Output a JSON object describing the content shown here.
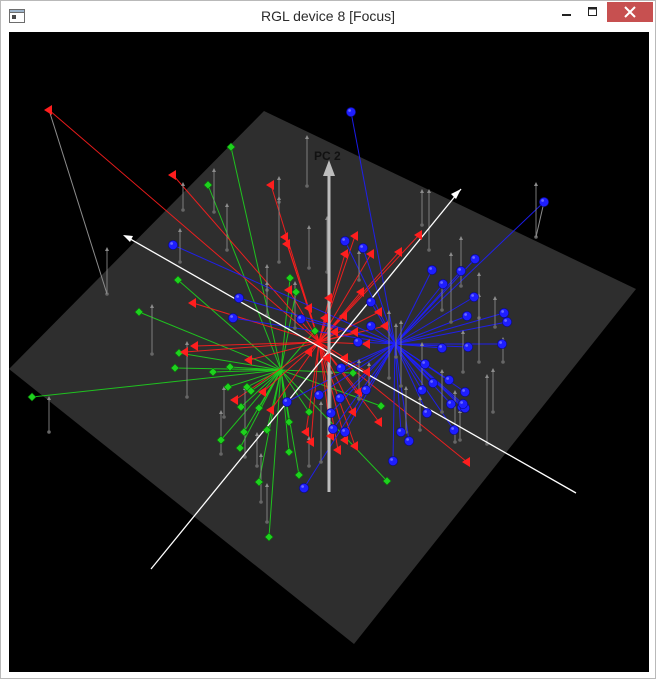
{
  "window": {
    "title": "RGL device 8 [Focus]",
    "controls": [
      "minimize",
      "maximize",
      "close"
    ],
    "close_color": "#c75050"
  },
  "scene": {
    "axis_labels": [
      "PC 2"
    ],
    "background": "#000000",
    "plane_color": "#2e2e2e",
    "colors": {
      "red": "#ff1e1e",
      "green": "#1ed21e",
      "blue": "#1e1eff",
      "grey": "#8c8c8c"
    }
  }
}
